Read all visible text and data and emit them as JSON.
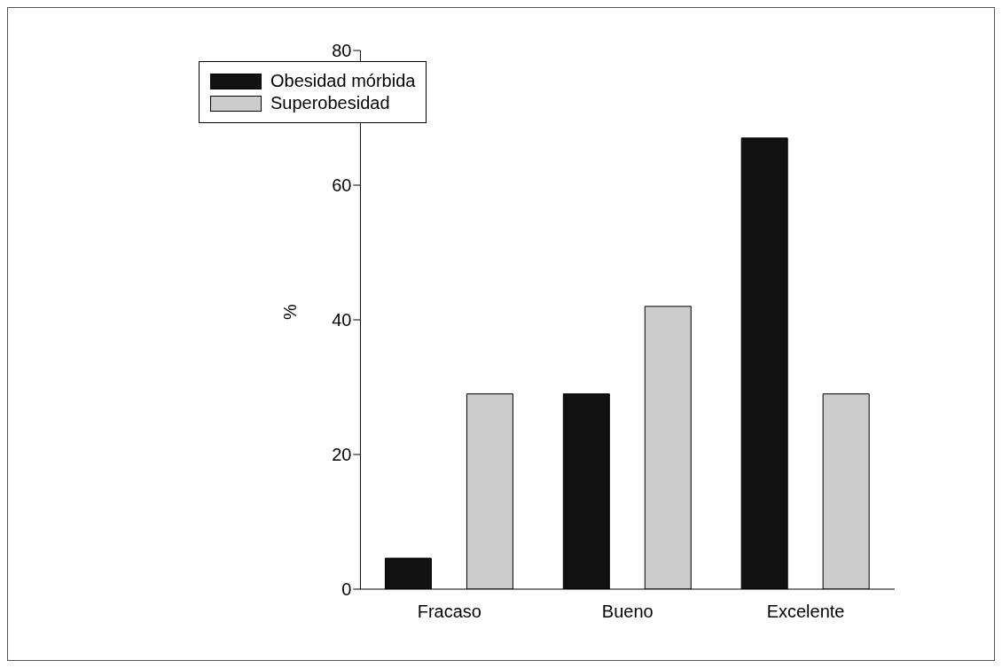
{
  "chart_data": {
    "type": "bar",
    "ylabel": "%",
    "categories": [
      "Fracaso",
      "Bueno",
      "Excelente"
    ],
    "series": [
      {
        "name": "Obesidad mórbida",
        "color": "#111111",
        "values": [
          4.6,
          29,
          67
        ]
      },
      {
        "name": "Superobesidad",
        "color": "#cccccc",
        "values": [
          29,
          42,
          29
        ]
      }
    ],
    "ylim": [
      0,
      80
    ],
    "yticks": [
      0,
      20,
      40,
      60,
      80
    ],
    "grid": false,
    "legend": "top left"
  }
}
